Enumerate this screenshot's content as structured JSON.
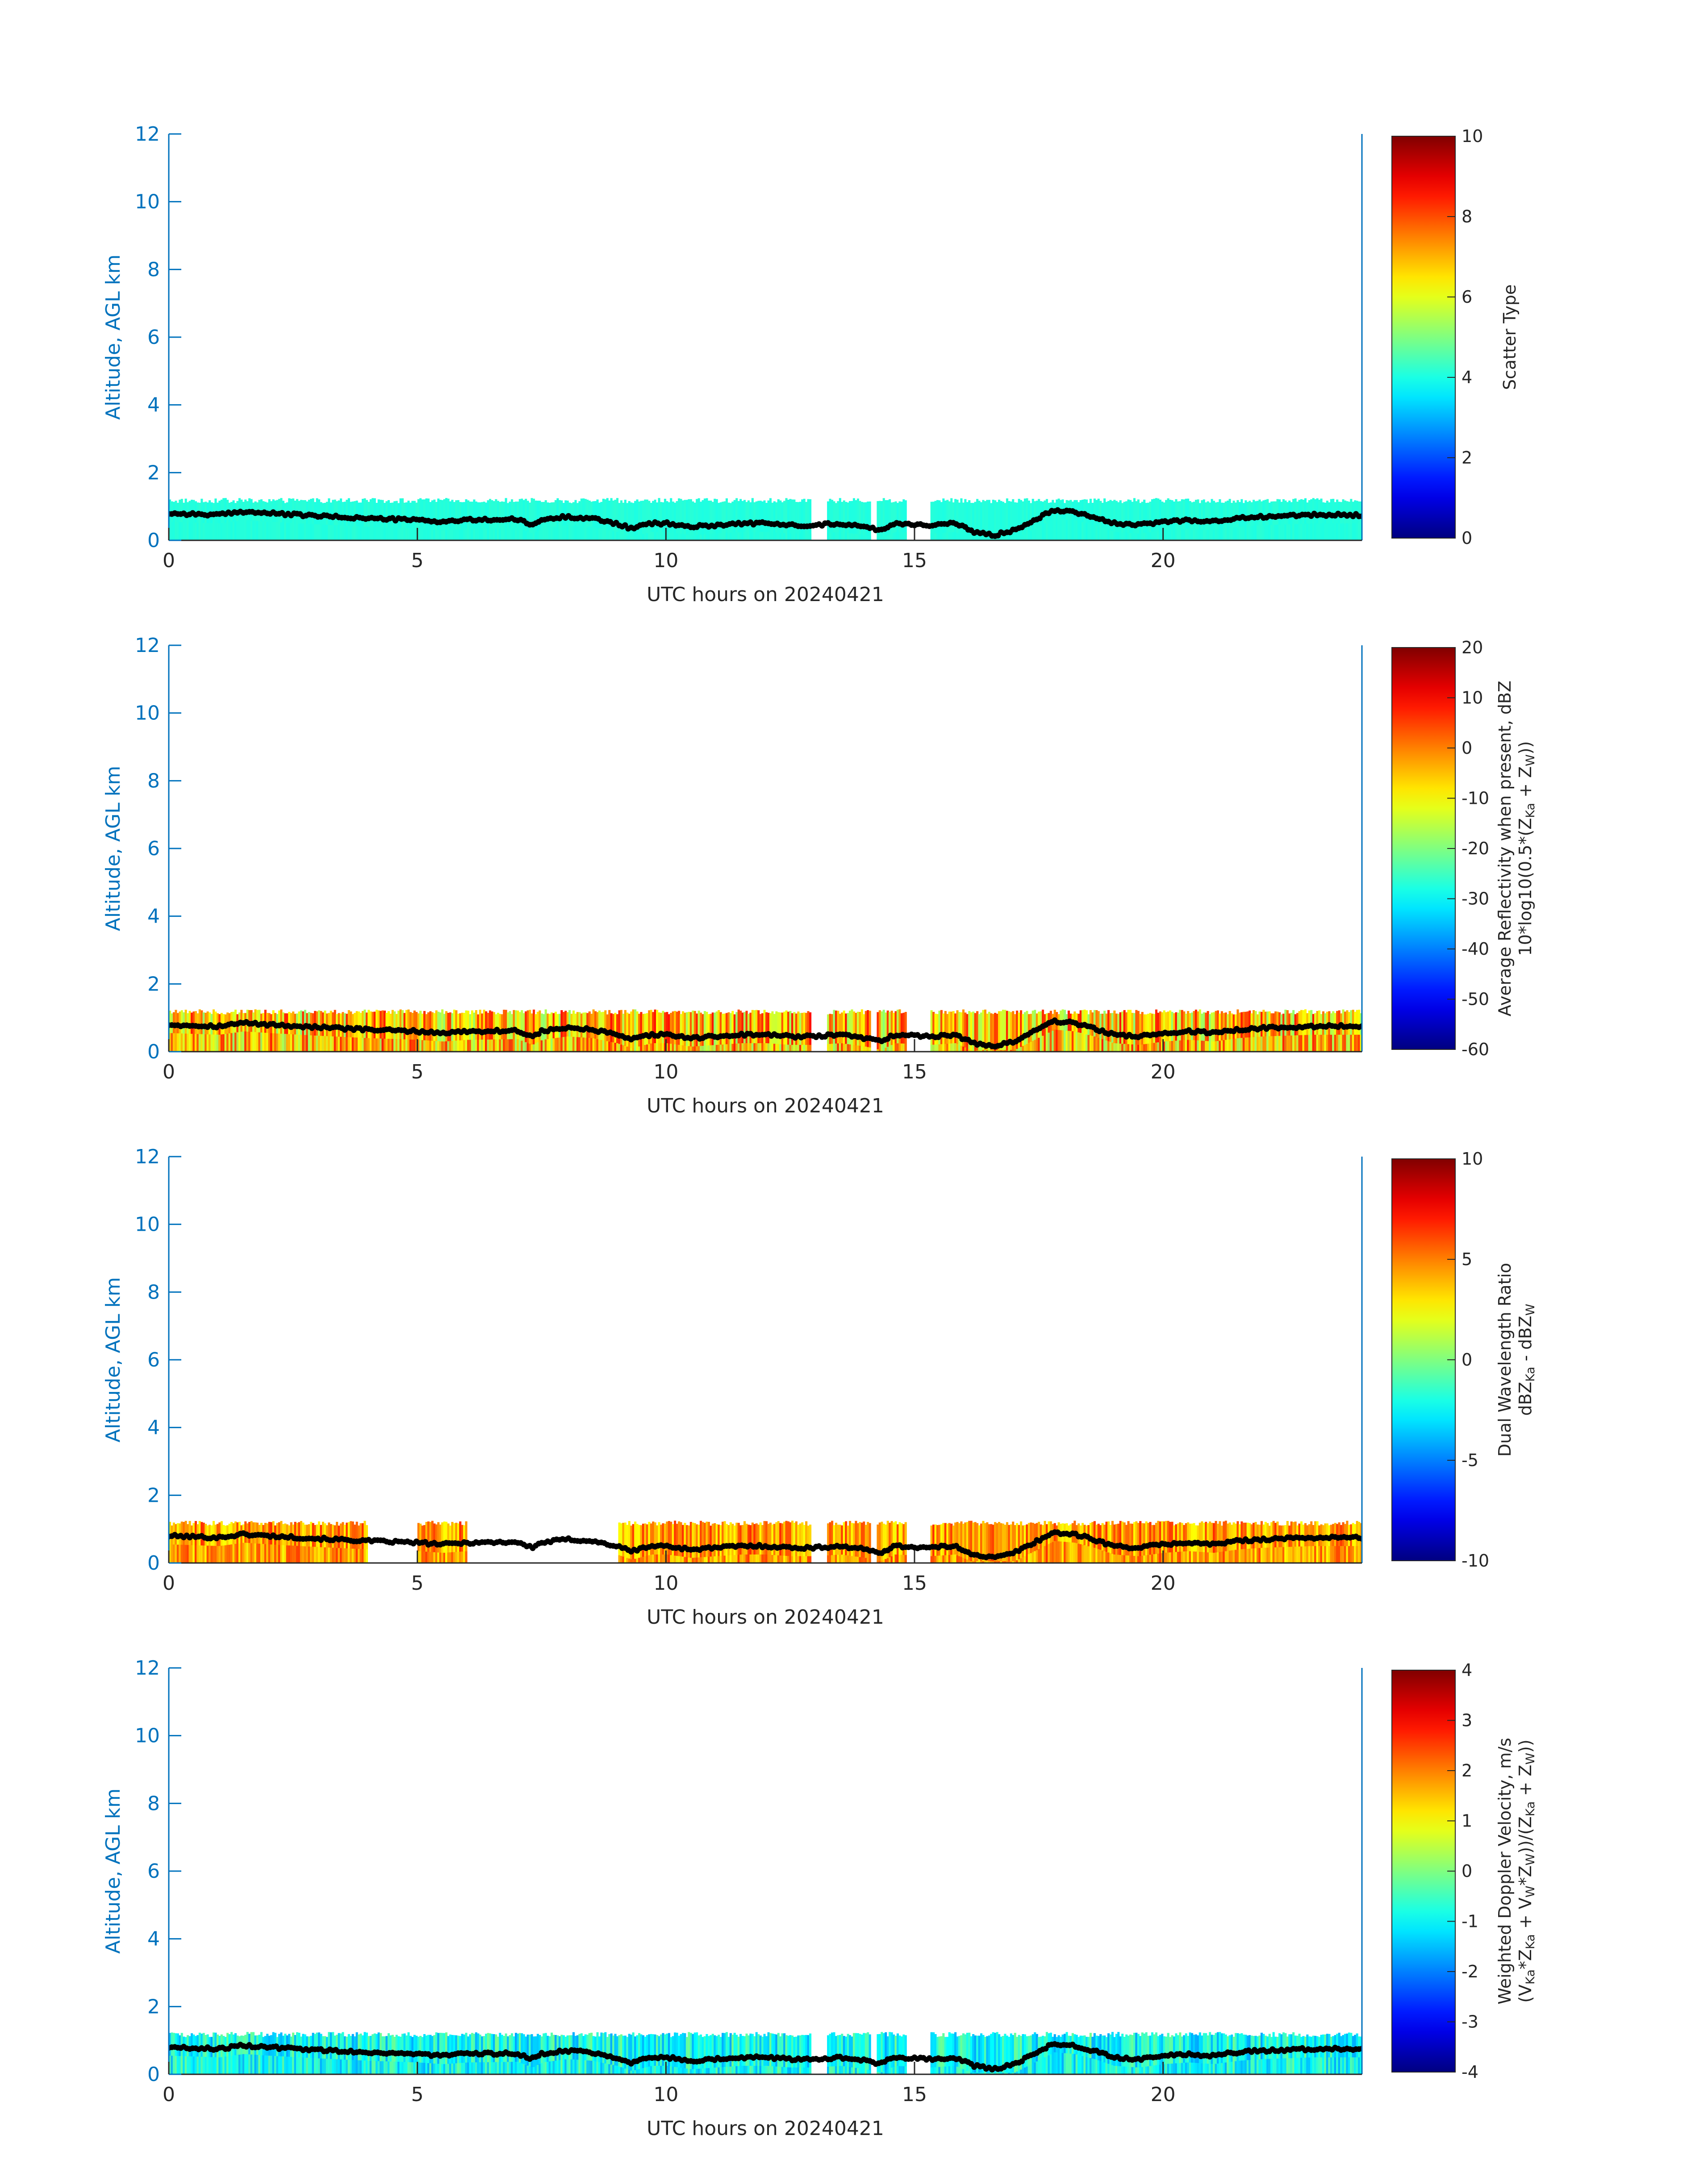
{
  "chart_data": [
    {
      "type": "heatmap",
      "xlabel": "UTC hours on 20240421",
      "ylabel": "Altitude, AGL km",
      "xlim": [
        0,
        24
      ],
      "ylim": [
        0,
        12
      ],
      "xticks": [
        "0",
        "5",
        "10",
        "15",
        "20"
      ],
      "yticks": [
        "0",
        "2",
        "4",
        "6",
        "8",
        "10",
        "12"
      ],
      "colorbar": {
        "colormap": "jet",
        "range": [
          0,
          10
        ],
        "ticks": [
          "0",
          "2",
          "4",
          "6",
          "8",
          "10"
        ],
        "label_lines": [
          [
            {
              "t": "Scatter Type"
            }
          ]
        ]
      },
      "field": {
        "value": 4.1,
        "noise": 0.08,
        "dominant": "cyan"
      },
      "missing_hours": [
        [
          12.9,
          13.2
        ],
        [
          14.1,
          14.2
        ],
        [
          14.8,
          15.3
        ]
      ],
      "echo_top_km": 1.2,
      "cloud_base_line": {
        "name": "ceilometer cloud base",
        "color": "#000000",
        "points": [
          [
            0,
            0.8
          ],
          [
            1,
            0.75
          ],
          [
            1.5,
            0.85
          ],
          [
            2,
            0.8
          ],
          [
            3,
            0.72
          ],
          [
            4,
            0.65
          ],
          [
            5,
            0.6
          ],
          [
            5.5,
            0.55
          ],
          [
            6,
            0.6
          ],
          [
            7,
            0.62
          ],
          [
            7.3,
            0.45
          ],
          [
            7.5,
            0.6
          ],
          [
            8,
            0.7
          ],
          [
            8.5,
            0.65
          ],
          [
            9,
            0.5
          ],
          [
            9.3,
            0.35
          ],
          [
            9.7,
            0.5
          ],
          [
            10,
            0.5
          ],
          [
            10.5,
            0.4
          ],
          [
            11,
            0.45
          ],
          [
            11.5,
            0.5
          ],
          [
            12,
            0.5
          ],
          [
            12.5,
            0.45
          ],
          [
            13,
            0.45
          ],
          [
            13.5,
            0.5
          ],
          [
            14,
            0.4
          ],
          [
            14.3,
            0.3
          ],
          [
            14.6,
            0.5
          ],
          [
            15.3,
            0.45
          ],
          [
            15.8,
            0.5
          ],
          [
            16.2,
            0.25
          ],
          [
            16.6,
            0.15
          ],
          [
            17,
            0.3
          ],
          [
            17.4,
            0.6
          ],
          [
            17.8,
            0.9
          ],
          [
            18.2,
            0.85
          ],
          [
            18.6,
            0.7
          ],
          [
            19,
            0.5
          ],
          [
            19.5,
            0.45
          ],
          [
            20,
            0.55
          ],
          [
            20.5,
            0.6
          ],
          [
            21,
            0.55
          ],
          [
            21.5,
            0.65
          ],
          [
            22,
            0.7
          ],
          [
            23,
            0.75
          ],
          [
            24,
            0.75
          ]
        ]
      }
    },
    {
      "type": "heatmap",
      "xlabel": "UTC hours on 20240421",
      "ylabel": "Altitude, AGL km",
      "xlim": [
        0,
        24
      ],
      "ylim": [
        0,
        12
      ],
      "xticks": [
        "0",
        "5",
        "10",
        "15",
        "20"
      ],
      "yticks": [
        "0",
        "2",
        "4",
        "6",
        "8",
        "10",
        "12"
      ],
      "colorbar": {
        "colormap": "jet",
        "range": [
          -60,
          20
        ],
        "ticks": [
          "-60",
          "-50",
          "-40",
          "-30",
          "-20",
          "-10",
          "0",
          "10",
          "20"
        ],
        "label_lines": [
          [
            {
              "t": "Average Reflectivity when present, dBZ"
            }
          ],
          [
            {
              "t": "10*log10(0.5*(Z"
            },
            {
              "t": "Ka",
              "sub": true
            },
            {
              "t": " + Z"
            },
            {
              "t": "W",
              "sub": true
            },
            {
              "t": "))"
            }
          ]
        ]
      },
      "field": {
        "value": -5,
        "noise": 14,
        "dominant": "yellow-orange"
      },
      "missing_hours": [
        [
          12.9,
          13.2
        ],
        [
          14.1,
          14.2
        ],
        [
          14.8,
          15.3
        ]
      ],
      "echo_top_km": 1.2,
      "cloud_base_line": {
        "name": "ceilometer cloud base",
        "color": "#000000",
        "points": [
          [
            0,
            0.8
          ],
          [
            1,
            0.75
          ],
          [
            1.5,
            0.85
          ],
          [
            2,
            0.8
          ],
          [
            3,
            0.72
          ],
          [
            4,
            0.65
          ],
          [
            5,
            0.6
          ],
          [
            5.5,
            0.55
          ],
          [
            6,
            0.6
          ],
          [
            7,
            0.62
          ],
          [
            7.3,
            0.45
          ],
          [
            7.5,
            0.6
          ],
          [
            8,
            0.7
          ],
          [
            8.5,
            0.65
          ],
          [
            9,
            0.5
          ],
          [
            9.3,
            0.35
          ],
          [
            9.7,
            0.5
          ],
          [
            10,
            0.5
          ],
          [
            10.5,
            0.4
          ],
          [
            11,
            0.45
          ],
          [
            11.5,
            0.5
          ],
          [
            12,
            0.5
          ],
          [
            12.5,
            0.45
          ],
          [
            13,
            0.45
          ],
          [
            13.5,
            0.5
          ],
          [
            14,
            0.4
          ],
          [
            14.3,
            0.3
          ],
          [
            14.6,
            0.5
          ],
          [
            15.3,
            0.45
          ],
          [
            15.8,
            0.5
          ],
          [
            16.2,
            0.25
          ],
          [
            16.6,
            0.15
          ],
          [
            17,
            0.3
          ],
          [
            17.4,
            0.6
          ],
          [
            17.8,
            0.9
          ],
          [
            18.2,
            0.85
          ],
          [
            18.6,
            0.7
          ],
          [
            19,
            0.5
          ],
          [
            19.5,
            0.45
          ],
          [
            20,
            0.55
          ],
          [
            20.5,
            0.6
          ],
          [
            21,
            0.55
          ],
          [
            21.5,
            0.65
          ],
          [
            22,
            0.7
          ],
          [
            23,
            0.75
          ],
          [
            24,
            0.75
          ]
        ]
      }
    },
    {
      "type": "heatmap",
      "xlabel": "UTC hours on 20240421",
      "ylabel": "Altitude, AGL km",
      "xlim": [
        0,
        24
      ],
      "ylim": [
        0,
        12
      ],
      "xticks": [
        "0",
        "5",
        "10",
        "15",
        "20"
      ],
      "yticks": [
        "0",
        "2",
        "4",
        "6",
        "8",
        "10",
        "12"
      ],
      "colorbar": {
        "colormap": "jet",
        "range": [
          -10,
          10
        ],
        "ticks": [
          "-10",
          "-5",
          "0",
          "5",
          "10"
        ],
        "label_lines": [
          [
            {
              "t": "Dual Wavelength Ratio"
            }
          ],
          [
            {
              "t": "dBZ"
            },
            {
              "t": "Ka",
              "sub": true
            },
            {
              "t": " - dBZ"
            },
            {
              "t": "W",
              "sub": true
            }
          ]
        ]
      },
      "field": {
        "value": 4.5,
        "noise": 2.2,
        "dominant": "orange"
      },
      "missing_hours": [
        [
          4.0,
          5.0
        ],
        [
          6.0,
          9.0
        ],
        [
          12.9,
          13.2
        ],
        [
          14.1,
          14.2
        ],
        [
          14.8,
          15.3
        ]
      ],
      "echo_top_km": 1.2,
      "cloud_base_line": {
        "name": "ceilometer cloud base",
        "color": "#000000",
        "points": [
          [
            0,
            0.8
          ],
          [
            1,
            0.75
          ],
          [
            1.5,
            0.85
          ],
          [
            2,
            0.8
          ],
          [
            3,
            0.72
          ],
          [
            4,
            0.65
          ],
          [
            5,
            0.6
          ],
          [
            5.5,
            0.55
          ],
          [
            6,
            0.6
          ],
          [
            7,
            0.62
          ],
          [
            7.3,
            0.45
          ],
          [
            7.5,
            0.6
          ],
          [
            8,
            0.7
          ],
          [
            8.5,
            0.65
          ],
          [
            9,
            0.5
          ],
          [
            9.3,
            0.35
          ],
          [
            9.7,
            0.5
          ],
          [
            10,
            0.5
          ],
          [
            10.5,
            0.4
          ],
          [
            11,
            0.45
          ],
          [
            11.5,
            0.5
          ],
          [
            12,
            0.5
          ],
          [
            12.5,
            0.45
          ],
          [
            13,
            0.45
          ],
          [
            13.5,
            0.5
          ],
          [
            14,
            0.4
          ],
          [
            14.3,
            0.3
          ],
          [
            14.6,
            0.5
          ],
          [
            15.3,
            0.45
          ],
          [
            15.8,
            0.5
          ],
          [
            16.2,
            0.25
          ],
          [
            16.6,
            0.15
          ],
          [
            17,
            0.3
          ],
          [
            17.4,
            0.6
          ],
          [
            17.8,
            0.9
          ],
          [
            18.2,
            0.85
          ],
          [
            18.6,
            0.7
          ],
          [
            19,
            0.5
          ],
          [
            19.5,
            0.45
          ],
          [
            20,
            0.55
          ],
          [
            20.5,
            0.6
          ],
          [
            21,
            0.55
          ],
          [
            21.5,
            0.65
          ],
          [
            22,
            0.7
          ],
          [
            23,
            0.75
          ],
          [
            24,
            0.75
          ]
        ]
      }
    },
    {
      "type": "heatmap",
      "xlabel": "UTC hours on 20240421",
      "ylabel": "Altitude, AGL km",
      "xlim": [
        0,
        24
      ],
      "ylim": [
        0,
        12
      ],
      "xticks": [
        "0",
        "5",
        "10",
        "15",
        "20"
      ],
      "yticks": [
        "0",
        "2",
        "4",
        "6",
        "8",
        "10",
        "12"
      ],
      "colorbar": {
        "colormap": "jet",
        "range": [
          -4,
          4
        ],
        "ticks": [
          "-4",
          "-3",
          "-2",
          "-1",
          "0",
          "1",
          "2",
          "3",
          "4"
        ],
        "label_lines": [
          [
            {
              "t": "Weighted Doppler Velocity, m/s"
            }
          ],
          [
            {
              "t": "(V"
            },
            {
              "t": "Ka",
              "sub": true
            },
            {
              "t": "*Z"
            },
            {
              "t": "Ka",
              "sub": true
            },
            {
              "t": " + V"
            },
            {
              "t": "W",
              "sub": true
            },
            {
              "t": "*Z"
            },
            {
              "t": "W",
              "sub": true
            },
            {
              "t": "))/(Z"
            },
            {
              "t": "Ka",
              "sub": true
            },
            {
              "t": " + Z"
            },
            {
              "t": "W",
              "sub": true
            },
            {
              "t": "))"
            }
          ]
        ]
      },
      "field": {
        "value": -0.9,
        "noise": 0.8,
        "dominant": "cyan-green"
      },
      "missing_hours": [
        [
          12.9,
          13.2
        ],
        [
          14.1,
          14.2
        ],
        [
          14.8,
          15.3
        ]
      ],
      "echo_top_km": 1.2,
      "cloud_base_line": {
        "name": "ceilometer cloud base",
        "color": "#000000",
        "points": [
          [
            0,
            0.8
          ],
          [
            1,
            0.75
          ],
          [
            1.5,
            0.85
          ],
          [
            2,
            0.8
          ],
          [
            3,
            0.72
          ],
          [
            4,
            0.65
          ],
          [
            5,
            0.6
          ],
          [
            5.5,
            0.55
          ],
          [
            6,
            0.6
          ],
          [
            7,
            0.62
          ],
          [
            7.3,
            0.45
          ],
          [
            7.5,
            0.6
          ],
          [
            8,
            0.7
          ],
          [
            8.5,
            0.65
          ],
          [
            9,
            0.5
          ],
          [
            9.3,
            0.35
          ],
          [
            9.7,
            0.5
          ],
          [
            10,
            0.5
          ],
          [
            10.5,
            0.4
          ],
          [
            11,
            0.45
          ],
          [
            11.5,
            0.5
          ],
          [
            12,
            0.5
          ],
          [
            12.5,
            0.45
          ],
          [
            13,
            0.45
          ],
          [
            13.5,
            0.5
          ],
          [
            14,
            0.4
          ],
          [
            14.3,
            0.3
          ],
          [
            14.6,
            0.5
          ],
          [
            15.3,
            0.45
          ],
          [
            15.8,
            0.5
          ],
          [
            16.2,
            0.25
          ],
          [
            16.6,
            0.15
          ],
          [
            17,
            0.3
          ],
          [
            17.4,
            0.6
          ],
          [
            17.8,
            0.9
          ],
          [
            18.2,
            0.85
          ],
          [
            18.6,
            0.7
          ],
          [
            19,
            0.5
          ],
          [
            19.5,
            0.45
          ],
          [
            20,
            0.55
          ],
          [
            20.5,
            0.6
          ],
          [
            21,
            0.55
          ],
          [
            21.5,
            0.65
          ],
          [
            22,
            0.7
          ],
          [
            23,
            0.75
          ],
          [
            24,
            0.75
          ]
        ]
      }
    }
  ]
}
